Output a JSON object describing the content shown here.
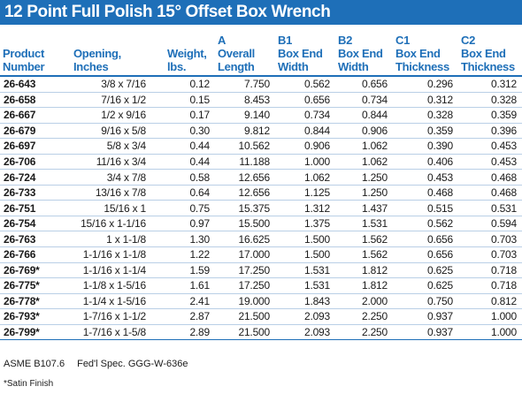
{
  "title": "12 Point Full Polish 15° Offset Box Wrench",
  "headers": {
    "product": [
      "Product",
      "Number"
    ],
    "opening": [
      "Opening,",
      "Inches"
    ],
    "weight": [
      "Weight,",
      "lbs."
    ],
    "a": [
      "A",
      "Overall",
      "Length"
    ],
    "b1": [
      "B1",
      "Box End",
      "Width"
    ],
    "b2": [
      "B2",
      "Box End",
      "Width"
    ],
    "c1": [
      "C1",
      "Box End",
      "Thickness"
    ],
    "c2": [
      "C2",
      "Box End",
      "Thickness"
    ]
  },
  "rows": [
    [
      "26-643",
      "3/8 x 7/16",
      "0.12",
      "7.750",
      "0.562",
      "0.656",
      "0.296",
      "0.312"
    ],
    [
      "26-658",
      "7/16 x 1/2",
      "0.15",
      "8.453",
      "0.656",
      "0.734",
      "0.312",
      "0.328"
    ],
    [
      "26-667",
      "1/2 x 9/16",
      "0.17",
      "9.140",
      "0.734",
      "0.844",
      "0.328",
      "0.359"
    ],
    [
      "26-679",
      "9/16 x 5/8",
      "0.30",
      "9.812",
      "0.844",
      "0.906",
      "0.359",
      "0.396"
    ],
    [
      "26-697",
      "5/8 x 3/4",
      "0.44",
      "10.562",
      "0.906",
      "1.062",
      "0.390",
      "0.453"
    ],
    [
      "26-706",
      "11/16 x 3/4",
      "0.44",
      "11.188",
      "1.000",
      "1.062",
      "0.406",
      "0.453"
    ],
    [
      "26-724",
      "3/4 x 7/8",
      "0.58",
      "12.656",
      "1.062",
      "1.250",
      "0.453",
      "0.468"
    ],
    [
      "26-733",
      "13/16 x 7/8",
      "0.64",
      "12.656",
      "1.125",
      "1.250",
      "0.468",
      "0.468"
    ],
    [
      "26-751",
      "15/16 x 1",
      "0.75",
      "15.375",
      "1.312",
      "1.437",
      "0.515",
      "0.531"
    ],
    [
      "26-754",
      "15/16 x 1-1/16",
      "0.97",
      "15.500",
      "1.375",
      "1.531",
      "0.562",
      "0.594"
    ],
    [
      "26-763",
      "1 x 1-1/8",
      "1.30",
      "16.625",
      "1.500",
      "1.562",
      "0.656",
      "0.703"
    ],
    [
      "26-766",
      "1-1/16 x 1-1/8",
      "1.22",
      "17.000",
      "1.500",
      "1.562",
      "0.656",
      "0.703"
    ],
    [
      "26-769*",
      "1-1/16 x 1-1/4",
      "1.59",
      "17.250",
      "1.531",
      "1.812",
      "0.625",
      "0.718"
    ],
    [
      "26-775*",
      "1-1/8 x 1-5/16",
      "1.61",
      "17.250",
      "1.531",
      "1.812",
      "0.625",
      "0.718"
    ],
    [
      "26-778*",
      "1-1/4 x 1-5/16",
      "2.41",
      "19.000",
      "1.843",
      "2.000",
      "0.750",
      "0.812"
    ],
    [
      "26-793*",
      "1-7/16 x 1-1/2",
      "2.87",
      "21.500",
      "2.093",
      "2.250",
      "0.937",
      "1.000"
    ],
    [
      "26-799*",
      "1-7/16 x 1-5/8",
      "2.89",
      "21.500",
      "2.093",
      "2.250",
      "0.937",
      "1.000"
    ]
  ],
  "footer": {
    "standard": "ASME B107.6",
    "spec": "Fed'l Spec. GGG-W-636e",
    "note": "*Satin Finish"
  },
  "colors": {
    "accent": "#1e6fb8",
    "row_rule": "#b9cfe6",
    "text": "#1a1a1a"
  }
}
